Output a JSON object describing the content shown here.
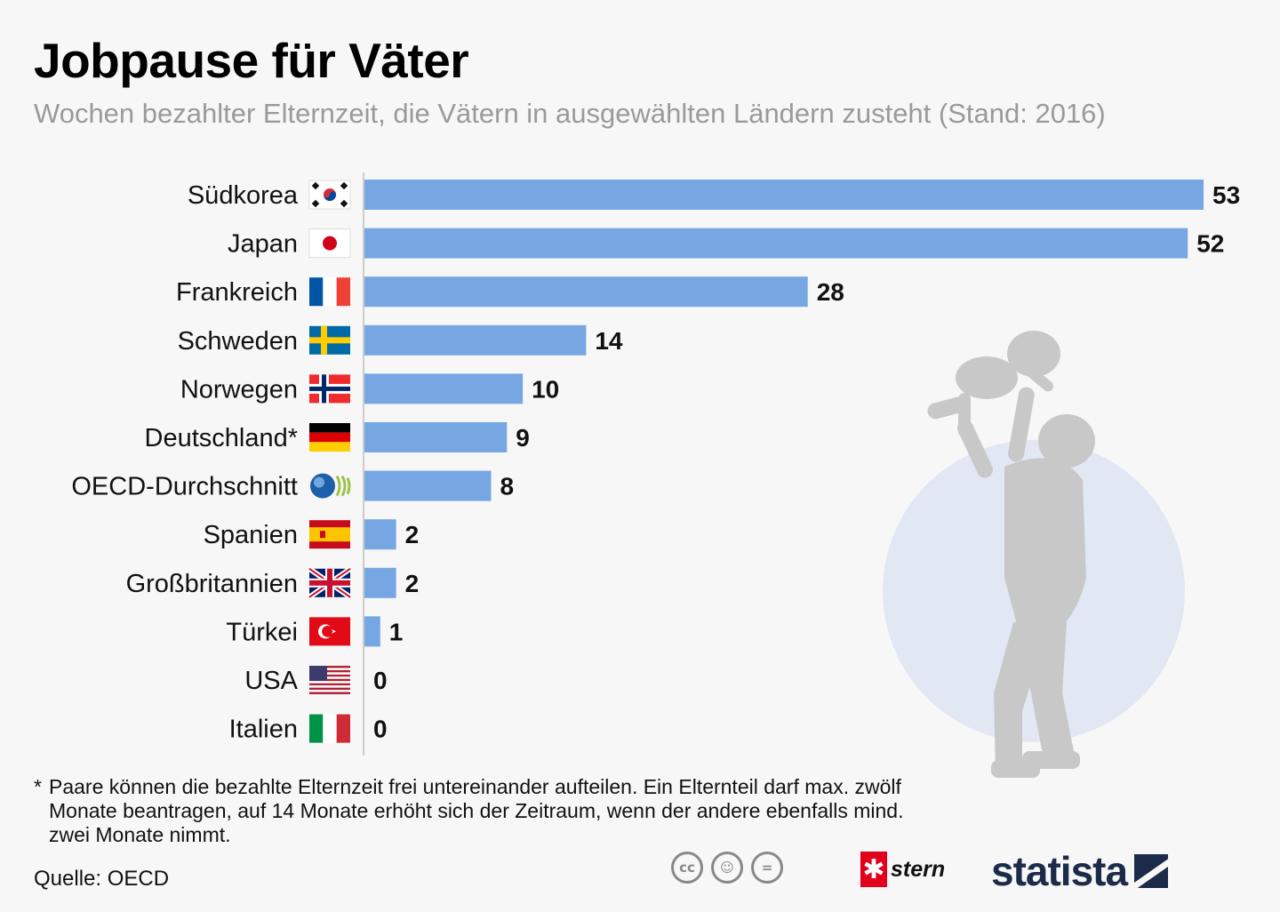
{
  "header": {
    "title": "Jobpause für Väter",
    "subtitle": "Wochen bezahlter Elternzeit, die Vätern in ausgewählten Ländern zusteht (Stand: 2016)"
  },
  "chart_data": {
    "type": "bar",
    "orientation": "horizontal",
    "title": "Jobpause für Väter",
    "subtitle": "Wochen bezahlter Elternzeit, die Vätern in ausgewählten Ländern zusteht (Stand: 2016)",
    "categories": [
      "Südkorea",
      "Japan",
      "Frankreich",
      "Schweden",
      "Norwegen",
      "Deutschland*",
      "OECD-Durchschnitt",
      "Spanien",
      "Großbritannien",
      "Türkei",
      "USA",
      "Italien"
    ],
    "values": [
      53,
      52,
      28,
      14,
      10,
      9,
      8,
      2,
      2,
      1,
      0,
      0
    ],
    "data_labels": [
      "53",
      "52",
      "28",
      "14",
      "10",
      "9",
      "8",
      "2",
      "2",
      "1",
      "0",
      "0"
    ],
    "flag_icons": [
      "flag-south-korea-icon",
      "flag-japan-icon",
      "flag-france-icon",
      "flag-sweden-icon",
      "flag-norway-icon",
      "flag-germany-icon",
      "oecd-logo-icon",
      "flag-spain-icon",
      "flag-uk-icon",
      "flag-turkey-icon",
      "flag-usa-icon",
      "flag-italy-icon"
    ],
    "xlim": [
      0,
      53
    ],
    "grid": false,
    "legend": "none",
    "bar_color": "#76a7e3"
  },
  "footnote": {
    "marker": "*",
    "text": "Paare können die bezahlte Elternzeit frei untereinander aufteilen. Ein Elternteil darf max. zwölf Monate beantragen, auf 14 Monate erhöht sich der Zeitraum, wenn der andere ebenfalls mind. zwei Monate nimmt."
  },
  "source": "Quelle: OECD",
  "logos": {
    "cc_icons": [
      "cc-icon",
      "by-icon",
      "nd-icon"
    ],
    "stern": "stern",
    "statista": "statista"
  },
  "colors": {
    "bar": "#76a7e3",
    "circle": "#e1e8f3",
    "silhouette": "#c8c8c8",
    "subtitle": "#9a9a9a",
    "background": "#f7f7f7"
  }
}
